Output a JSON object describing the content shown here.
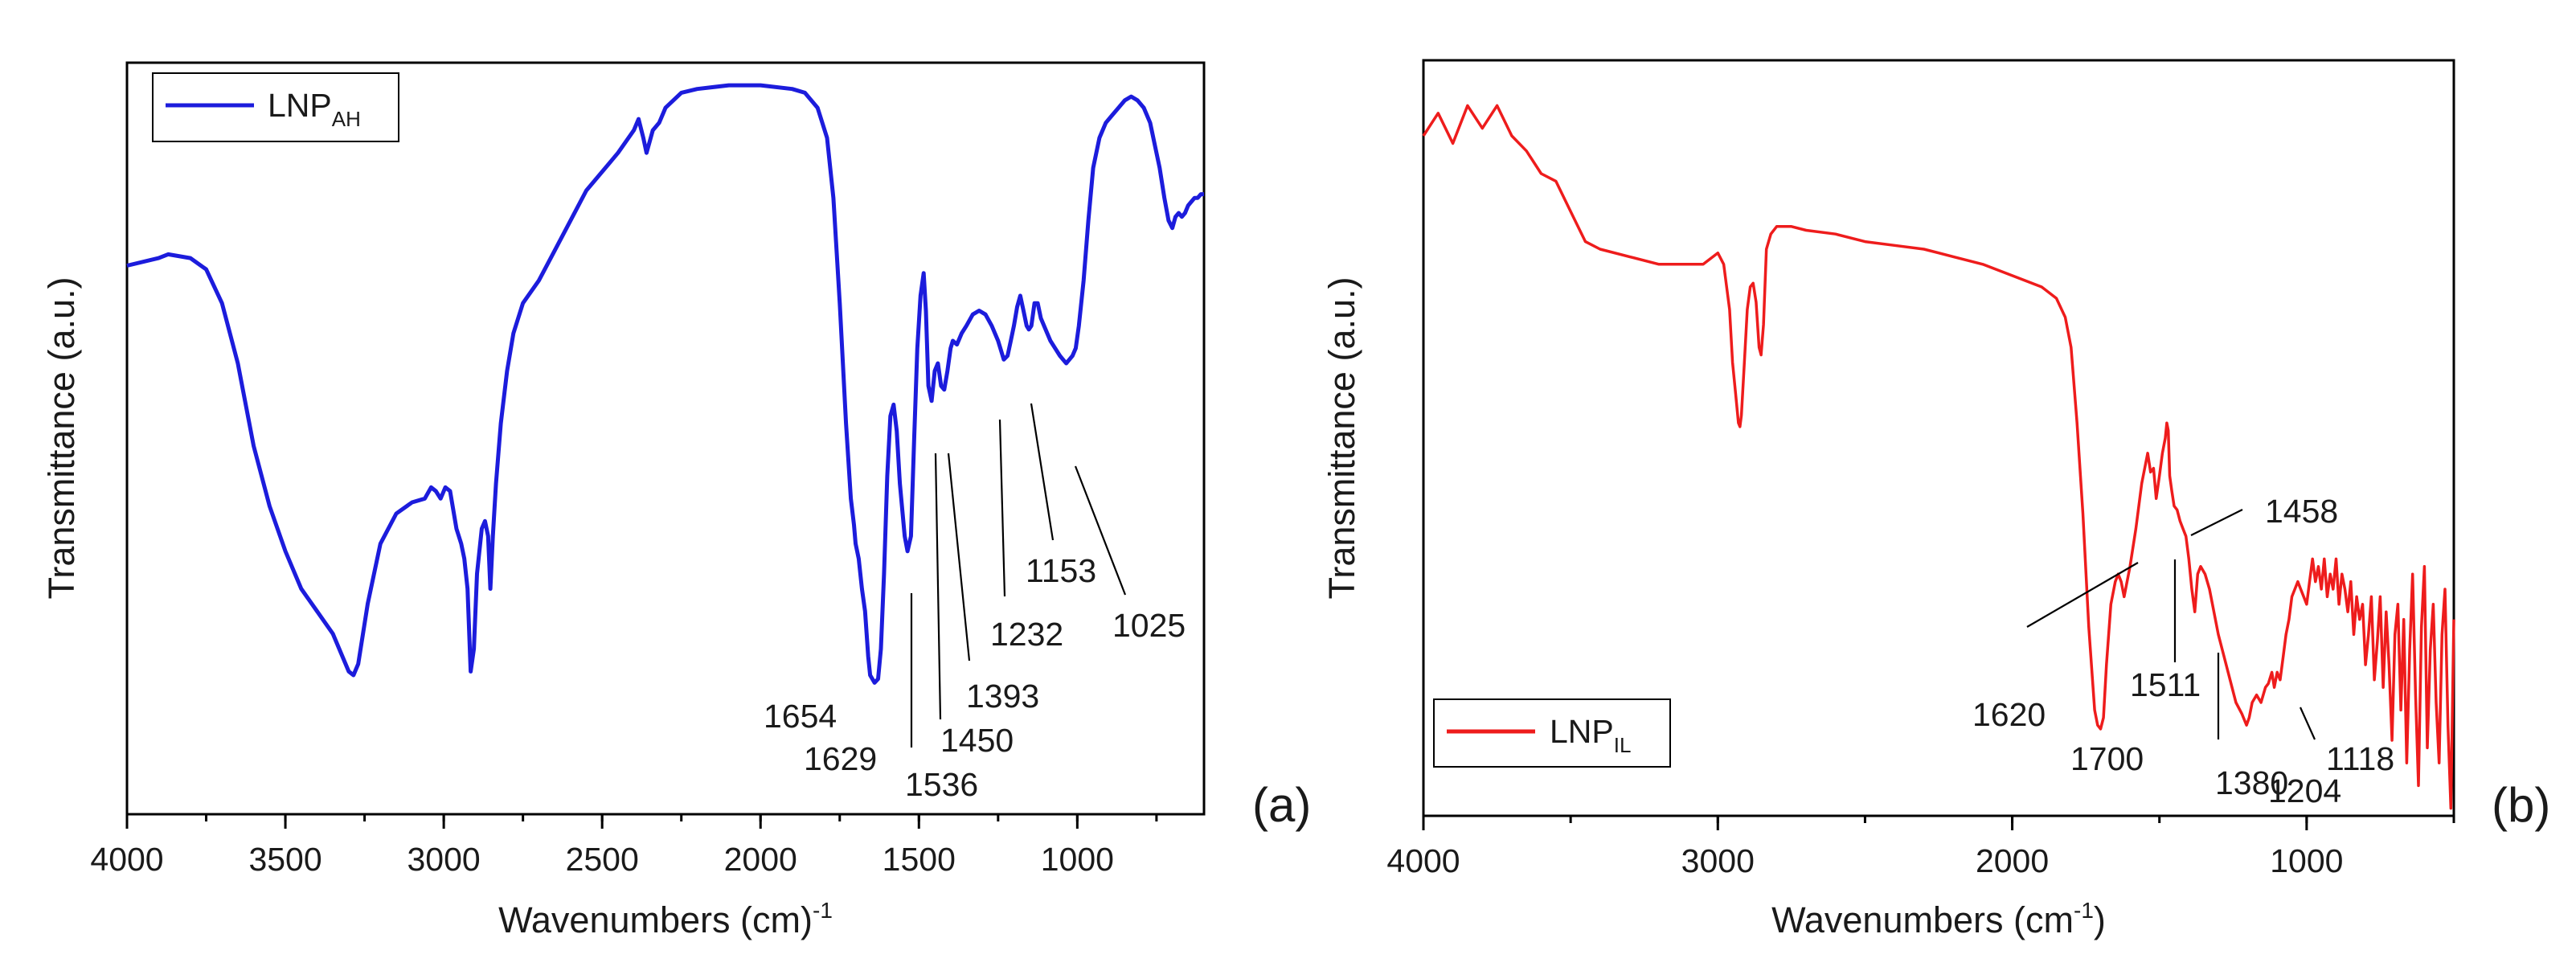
{
  "chart_data": [
    {
      "panel": "(a)",
      "type": "line",
      "xlabel": "Wavenumbers (cm)",
      "xlabel_sup": "-1",
      "ylabel": "Transmittance (a.u.)",
      "xlim": [
        4000,
        600
      ],
      "ylim": [
        0,
        100
      ],
      "xticks": [
        4000,
        3500,
        3000,
        2500,
        2000,
        1500,
        1000
      ],
      "tick_labels": [
        "4000",
        "3500",
        "3000",
        "2500",
        "2000",
        "1500",
        "1000"
      ],
      "legend": {
        "name": "LNP",
        "sub": "AH",
        "placement": "top-left"
      },
      "color": "#1c1cdc",
      "series": [
        {
          "name": "LNP_AH",
          "x": [
            4000,
            3900,
            3870,
            3800,
            3750,
            3700,
            3650,
            3600,
            3550,
            3500,
            3450,
            3400,
            3350,
            3300,
            3285,
            3270,
            3240,
            3200,
            3150,
            3100,
            3060,
            3040,
            3025,
            3010,
            2995,
            2980,
            2960,
            2945,
            2935,
            2925,
            2915,
            2905,
            2895,
            2880,
            2870,
            2860,
            2853,
            2845,
            2835,
            2820,
            2800,
            2780,
            2750,
            2700,
            2650,
            2600,
            2550,
            2500,
            2450,
            2400,
            2385,
            2370,
            2360,
            2350,
            2340,
            2320,
            2300,
            2250,
            2200,
            2100,
            2000,
            1900,
            1860,
            1820,
            1790,
            1770,
            1750,
            1730,
            1715,
            1705,
            1700,
            1690,
            1680,
            1670,
            1660,
            1654,
            1640,
            1629,
            1620,
            1610,
            1600,
            1590,
            1580,
            1570,
            1560,
            1545,
            1536,
            1525,
            1515,
            1505,
            1495,
            1485,
            1478,
            1470,
            1460,
            1450,
            1440,
            1430,
            1420,
            1410,
            1400,
            1393,
            1380,
            1365,
            1350,
            1330,
            1310,
            1290,
            1270,
            1250,
            1232,
            1220,
            1210,
            1200,
            1190,
            1180,
            1170,
            1160,
            1153,
            1145,
            1135,
            1125,
            1115,
            1100,
            1085,
            1070,
            1055,
            1045,
            1035,
            1025,
            1015,
            1005,
            995,
            980,
            965,
            950,
            930,
            910,
            890,
            870,
            850,
            830,
            810,
            790,
            770,
            755,
            740,
            725,
            712,
            700,
            690,
            680,
            670,
            660,
            650,
            640,
            630,
            620,
            610,
            600
          ],
          "y": [
            73,
            74,
            74.5,
            74,
            72.5,
            68,
            60,
            49,
            41,
            35,
            30,
            27,
            24,
            19,
            18.5,
            20,
            28,
            36,
            40,
            41.5,
            42,
            43.5,
            43,
            42,
            43.5,
            43,
            38,
            36,
            34,
            30,
            19,
            22,
            32,
            38,
            39,
            37,
            30,
            37,
            44,
            52,
            59,
            64,
            68,
            71,
            75,
            79,
            83,
            85.5,
            88,
            91,
            92.5,
            90,
            88,
            89.5,
            91,
            92,
            94,
            96,
            96.5,
            97,
            97,
            96.5,
            96,
            94,
            90,
            82,
            68,
            52,
            42,
            38.5,
            36,
            34,
            30,
            27,
            21,
            18.5,
            17.5,
            18,
            22,
            32,
            45,
            53,
            54.5,
            51,
            44,
            37,
            35,
            37,
            50,
            62,
            69,
            72,
            67,
            57,
            55,
            59,
            60,
            57,
            56.5,
            59,
            62,
            63,
            62.5,
            64,
            65,
            66.5,
            67,
            66.5,
            65,
            63,
            60.5,
            61,
            63,
            65,
            67.5,
            69,
            67,
            65,
            64.5,
            65,
            68,
            68,
            66,
            64.5,
            63,
            62,
            61,
            60.5,
            60,
            60.5,
            61,
            62,
            65,
            71,
            79,
            86,
            90,
            92,
            93,
            94,
            95,
            95.5,
            95,
            94,
            92,
            89,
            86,
            82,
            79,
            78,
            79.5,
            80,
            79.5,
            80,
            81,
            81.5,
            82,
            82,
            82.5,
            82.5
          ]
        }
      ],
      "peaks": [
        "1654",
        "1629",
        "1536",
        "1450",
        "1393",
        "1232",
        "1153",
        "1025"
      ]
    },
    {
      "panel": "(b)",
      "type": "line",
      "xlabel": "Wavenumbers (cm",
      "xlabel_sup": "-1",
      "xlabel_tail": ")",
      "ylabel": "Transmittance (a.u.)",
      "xlim": [
        4000,
        500
      ],
      "ylim": [
        0,
        100
      ],
      "xticks": [
        4000,
        3000,
        2000,
        1000
      ],
      "tick_labels": [
        "4000",
        "3000",
        "2000",
        "1000"
      ],
      "legend": {
        "name": "LNP",
        "sub": "IL",
        "placement": "bottom-left"
      },
      "color": "#ee1c1c",
      "series": [
        {
          "name": "LNP_IL",
          "x": [
            4000,
            3950,
            3900,
            3850,
            3800,
            3750,
            3700,
            3650,
            3600,
            3550,
            3500,
            3450,
            3400,
            3300,
            3200,
            3100,
            3050,
            3000,
            2980,
            2960,
            2950,
            2940,
            2930,
            2925,
            2920,
            2910,
            2900,
            2890,
            2880,
            2870,
            2860,
            2853,
            2845,
            2835,
            2820,
            2800,
            2750,
            2700,
            2600,
            2500,
            2400,
            2300,
            2200,
            2100,
            2000,
            1900,
            1850,
            1820,
            1800,
            1780,
            1760,
            1740,
            1720,
            1710,
            1700,
            1690,
            1680,
            1665,
            1650,
            1640,
            1630,
            1620,
            1600,
            1580,
            1560,
            1540,
            1530,
            1520,
            1511,
            1500,
            1490,
            1480,
            1475,
            1470,
            1465,
            1458,
            1450,
            1440,
            1430,
            1420,
            1410,
            1400,
            1390,
            1380,
            1370,
            1360,
            1345,
            1330,
            1315,
            1300,
            1280,
            1260,
            1240,
            1220,
            1204,
            1195,
            1185,
            1170,
            1155,
            1140,
            1130,
            1118,
            1110,
            1100,
            1090,
            1080,
            1070,
            1060,
            1050,
            1040,
            1030,
            1020,
            1010,
            1000,
            990,
            980,
            970,
            960,
            950,
            940,
            930,
            920,
            910,
            900,
            890,
            880,
            870,
            860,
            850,
            840,
            830,
            820,
            810,
            800,
            790,
            780,
            770,
            760,
            750,
            740,
            730,
            720,
            710,
            700,
            690,
            680,
            670,
            660,
            650,
            640,
            630,
            620,
            610,
            600,
            590,
            580,
            570,
            560,
            550,
            540,
            530,
            520,
            510,
            500
          ],
          "y": [
            90,
            93,
            89,
            94,
            91,
            94,
            90,
            88,
            85,
            84,
            80,
            76,
            75,
            74,
            73,
            73,
            73,
            74.5,
            73,
            67,
            60,
            56,
            52,
            51.5,
            53,
            60,
            67,
            70,
            70.5,
            68,
            62,
            61,
            65,
            75,
            77,
            78,
            78,
            77.5,
            77,
            76,
            75.5,
            75,
            74,
            73,
            71.5,
            70,
            68.5,
            66,
            62,
            52,
            40,
            25,
            14,
            12,
            11.5,
            13,
            20,
            28,
            31,
            32,
            31,
            29,
            33,
            38,
            44,
            48,
            45.5,
            46,
            42,
            45,
            48,
            50,
            52,
            51,
            45,
            43,
            41,
            40.5,
            39,
            38,
            37,
            34,
            30,
            27,
            32,
            33,
            32,
            30,
            27,
            24,
            21,
            18,
            15,
            13.5,
            12,
            13,
            15,
            16,
            15,
            17,
            17.5,
            19,
            17,
            19,
            18,
            21,
            24,
            26,
            29,
            30,
            31,
            30,
            29,
            28,
            31,
            34,
            31,
            33,
            30,
            34,
            29,
            32,
            30,
            34,
            28,
            32,
            30,
            27,
            31,
            24,
            29,
            26,
            28,
            20,
            24,
            29,
            18,
            23,
            29,
            17,
            27,
            20,
            10,
            24,
            28,
            14,
            26,
            7,
            22,
            32,
            16,
            4,
            25,
            33,
            9,
            22,
            28,
            15,
            7,
            24,
            30,
            12,
            1,
            26
          ]
        }
      ],
      "peaks": [
        "1620",
        "1511",
        "1458",
        "1700",
        "1380",
        "1204",
        "1118"
      ]
    }
  ]
}
